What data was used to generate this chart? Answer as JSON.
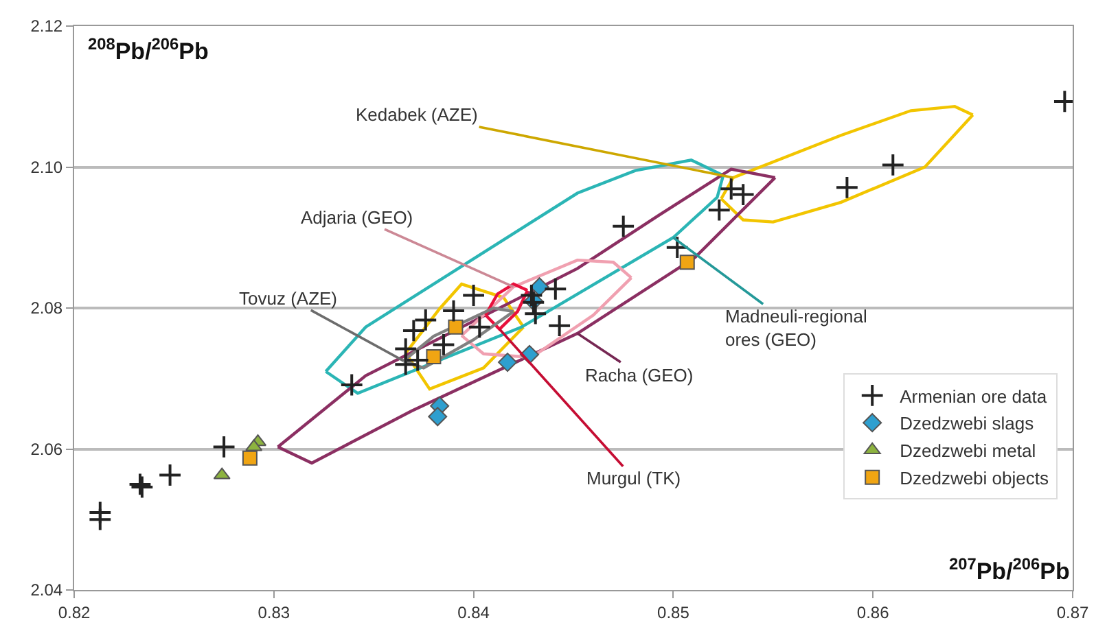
{
  "chart_data": {
    "type": "scatter",
    "xlabel": "$^{207}$Pb/$^{206}$Pb",
    "ylabel": "$^{208}$Pb/$^{206}$Pb",
    "xlim": [
      0.82,
      0.87
    ],
    "xticks": [
      0.82,
      0.83,
      0.84,
      0.85,
      0.86,
      0.87
    ],
    "ylim": [
      2.04,
      2.12
    ],
    "yticks": [
      2.04,
      2.06,
      2.08,
      {
        "value": 2.1,
        "label": "2.10"
      },
      2.12
    ],
    "grid": "y",
    "legend": "bottom right",
    "series": [
      {
        "name": "Armenian ore data",
        "type": "scatter",
        "marker": "cross",
        "color": "#222222",
        "x": [
          0.8696,
          0.861,
          0.8587,
          0.8535,
          0.8529,
          0.8523,
          0.8475,
          0.8502,
          0.8443,
          0.8213,
          0.8213,
          0.8234,
          0.8233,
          0.8248,
          0.8275,
          0.8339,
          0.8366,
          0.8366,
          0.8372,
          0.837,
          0.8376,
          0.8385,
          0.839,
          0.8403,
          0.8431,
          0.843,
          0.84,
          0.8441,
          0.8429
        ],
        "values": [
          2.1093,
          2.1003,
          2.0971,
          2.0961,
          2.0969,
          2.0939,
          2.0916,
          2.0886,
          2.0775,
          2.05,
          2.051,
          2.0546,
          2.055,
          2.0563,
          2.0603,
          2.0691,
          2.0742,
          2.072,
          2.0726,
          2.0768,
          2.0783,
          2.0748,
          2.0796,
          2.0773,
          2.0792,
          2.0808,
          2.0818,
          2.0827,
          2.0818
        ]
      },
      {
        "name": "Dzedzwebi slags",
        "type": "scatter",
        "marker": "diamond",
        "color": "#2e9fcf",
        "x": [
          0.8433,
          0.843,
          0.8417,
          0.8428,
          0.8383,
          0.8382
        ],
        "values": [
          2.083,
          2.081,
          2.0723,
          2.0734,
          2.0661,
          2.0646
        ]
      },
      {
        "name": "Dzedzwebi metal",
        "type": "scatter",
        "marker": "triangle",
        "color": "#8db33f",
        "x": [
          0.8274,
          0.8292,
          0.829
        ],
        "values": [
          2.0563,
          2.061,
          2.0603
        ]
      },
      {
        "name": "Dzedzwebi objects",
        "type": "scatter",
        "marker": "square",
        "color": "#f0a513",
        "x": [
          0.8288,
          0.838,
          0.8391,
          0.8507
        ],
        "values": [
          2.0587,
          2.0731,
          2.0773,
          2.0865
        ]
      },
      {
        "name": "Kedabek (AZE)",
        "type": "line",
        "marker": "none",
        "line_style": "solid",
        "color": "#f2c500",
        "x": [
          0.8524,
          0.853,
          0.8584,
          0.8619,
          0.8641,
          0.865
        ],
        "values": [
          2.0955,
          2.0985,
          2.1045,
          2.108,
          2.1086,
          2.1074
        ]
      },
      {
        "name": null,
        "type": "line",
        "marker": "none",
        "line_style": "solid",
        "color": "#f2c500",
        "x": [
          0.8524,
          0.8535,
          0.855,
          0.8584,
          0.8626,
          0.865
        ],
        "values": [
          2.0955,
          2.0925,
          2.0922,
          2.095,
          2.1,
          2.1074
        ]
      },
      {
        "name": null,
        "type": "line",
        "marker": "none",
        "line_style": "solid",
        "color": "#f2c500",
        "x": [
          0.8366,
          0.8383,
          0.8394,
          0.8415,
          0.8425
        ],
        "values": [
          2.0736,
          2.0799,
          2.0834,
          2.0815,
          2.0773
        ]
      },
      {
        "name": null,
        "type": "line",
        "marker": "none",
        "line_style": "solid",
        "color": "#f2c500",
        "x": [
          0.8366,
          0.8378,
          0.8405,
          0.8425
        ],
        "values": [
          2.0736,
          2.0685,
          2.0715,
          2.0773
        ]
      },
      {
        "name": null,
        "type": "line",
        "marker": "none",
        "line_style": "solid",
        "color": "#2bb5b5",
        "x": [
          0.8326,
          0.8346,
          0.8452,
          0.8481,
          0.8509,
          0.8525
        ],
        "values": [
          2.071,
          2.0773,
          2.0963,
          2.0995,
          2.101,
          2.0988
        ]
      },
      {
        "name": "Madneuli-regional\nores (GEO)",
        "type": "line",
        "marker": "none",
        "line_style": "solid",
        "color": "#2bb5b5",
        "x": [
          0.8326,
          0.8342,
          0.8424,
          0.85,
          0.8522,
          0.8525
        ],
        "values": [
          2.071,
          2.0679,
          2.0773,
          2.09,
          2.0957,
          2.0988
        ]
      },
      {
        "name": null,
        "type": "line",
        "marker": "none",
        "line_style": "solid",
        "color": "#8b2f62",
        "x": [
          0.8302,
          0.8346,
          0.8452,
          0.8493,
          0.8529,
          0.8551
        ],
        "values": [
          2.0603,
          2.0704,
          2.0856,
          2.0932,
          2.0997,
          2.0985
        ]
      },
      {
        "name": "Racha (GEO)",
        "type": "line",
        "marker": "none",
        "line_style": "solid",
        "color": "#8b2f62",
        "x": [
          0.8302,
          0.8319,
          0.8369,
          0.8452,
          0.8511,
          0.8551
        ],
        "values": [
          2.0603,
          2.058,
          2.0654,
          2.0764,
          2.0872,
          2.0985
        ]
      },
      {
        "name": "Adjaria (GEO)",
        "type": "line",
        "marker": "none",
        "line_style": "solid",
        "color": "#f0a0b0",
        "x": [
          0.8394,
          0.842,
          0.8452,
          0.847,
          0.8479
        ],
        "values": [
          2.0761,
          2.083,
          2.0868,
          2.0865,
          2.0843
        ]
      },
      {
        "name": null,
        "type": "line",
        "marker": "none",
        "line_style": "solid",
        "color": "#f0a0b0",
        "x": [
          0.8394,
          0.8405,
          0.8429,
          0.846,
          0.8479
        ],
        "values": [
          2.0761,
          2.0735,
          2.073,
          2.079,
          2.0843
        ]
      },
      {
        "name": null,
        "type": "line",
        "marker": "none",
        "line_style": "solid",
        "color": "#e8103c",
        "x": [
          0.8406,
          0.8412,
          0.842,
          0.8427
        ],
        "values": [
          2.079,
          2.082,
          2.0834,
          2.0825
        ]
      },
      {
        "name": "Murgul (TK)",
        "type": "line",
        "marker": "none",
        "line_style": "solid",
        "color": "#e8103c",
        "x": [
          0.8406,
          0.8413,
          0.8422,
          0.8427
        ],
        "values": [
          2.079,
          2.077,
          2.0795,
          2.0825
        ]
      },
      {
        "name": "Tovuz (AZE)",
        "type": "line",
        "marker": "none",
        "line_style": "solid",
        "color": "#808080",
        "x": [
          0.8365,
          0.838,
          0.841,
          0.842
        ],
        "values": [
          2.0725,
          2.076,
          2.08,
          2.0795
        ]
      },
      {
        "name": null,
        "type": "line",
        "marker": "none",
        "line_style": "solid",
        "color": "#808080",
        "x": [
          0.8365,
          0.8375,
          0.84,
          0.842
        ],
        "values": [
          2.0725,
          2.0715,
          2.0755,
          2.0795
        ]
      }
    ]
  }
}
